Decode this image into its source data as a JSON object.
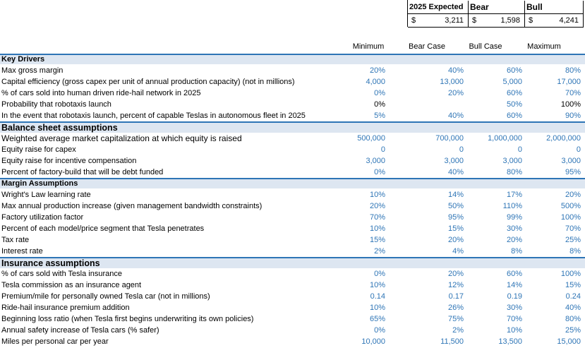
{
  "summary": {
    "headers": [
      "2025 Expected",
      "Bear",
      "Bull"
    ],
    "currency": "$",
    "values": [
      "3,211",
      "1,598",
      "4,241"
    ]
  },
  "columns": [
    "Minimum",
    "Bear Case",
    "Bull Case",
    "Maximum"
  ],
  "sections": [
    {
      "title": "Key Drivers",
      "rows": [
        {
          "label": "Max gross margin",
          "values": [
            "20%",
            "40%",
            "60%",
            "80%"
          ]
        },
        {
          "label": "Capital efficiency (gross capex per unit of annual production capacity) (not in millions)",
          "values": [
            "4,000",
            "13,000",
            "5,000",
            "17,000"
          ]
        },
        {
          "label": "% of cars sold into human driven ride-hail network in 2025",
          "values": [
            "0%",
            "20%",
            "60%",
            "70%"
          ]
        },
        {
          "label": "Probability that robotaxis launch",
          "values": [
            "0%",
            "",
            "50%",
            "100%"
          ]
        },
        {
          "label": "In the event that robotaxis launch, percent of capable Teslas in autonomous fleet in 2025",
          "values": [
            "5%",
            "40%",
            "60%",
            "90%"
          ]
        }
      ]
    },
    {
      "title": "Balance sheet assumptions",
      "rows": [
        {
          "label": "Weighted average market capitalization at which equity is raised",
          "values": [
            "500,000",
            "700,000",
            "1,000,000",
            "2,000,000"
          ]
        },
        {
          "label": "Equity raise for capex",
          "values": [
            "0",
            "0",
            "0",
            "0"
          ]
        },
        {
          "label": "Equity raise for incentive compensation",
          "values": [
            "3,000",
            "3,000",
            "3,000",
            "3,000"
          ]
        },
        {
          "label": "Percent of factory-build that will be debt funded",
          "values": [
            "0%",
            "40%",
            "80%",
            "95%"
          ]
        }
      ]
    },
    {
      "title": "Margin Assumptions",
      "rows": [
        {
          "label": "Wright's Law learning rate",
          "values": [
            "10%",
            "14%",
            "17%",
            "20%"
          ]
        },
        {
          "label": "Max annual production increase (given management bandwidth constraints)",
          "values": [
            "20%",
            "50%",
            "110%",
            "500%"
          ]
        },
        {
          "label": "Factory utilization factor",
          "values": [
            "70%",
            "95%",
            "99%",
            "100%"
          ]
        },
        {
          "label": "Percent of each model/price segment that Tesla penetrates",
          "values": [
            "10%",
            "15%",
            "30%",
            "70%"
          ]
        },
        {
          "label": "Tax rate",
          "values": [
            "15%",
            "20%",
            "20%",
            "25%"
          ]
        },
        {
          "label": "Interest rate",
          "values": [
            "2%",
            "4%",
            "8%",
            "8%"
          ]
        }
      ]
    },
    {
      "title": "Insurance assumptions",
      "rows": [
        {
          "label": "% of cars sold with Tesla insurance",
          "values": [
            "0%",
            "20%",
            "60%",
            "100%"
          ]
        },
        {
          "label": "Tesla commission as an insurance agent",
          "values": [
            "10%",
            "12%",
            "14%",
            "15%"
          ]
        },
        {
          "label": "Premium/mile for personally owned Tesla car (not in millions)",
          "values": [
            "0.14",
            "0.17",
            "0.19",
            "0.24"
          ]
        },
        {
          "label": "Ride-hail insurance premium addition",
          "values": [
            "10%",
            "26%",
            "30%",
            "40%"
          ]
        },
        {
          "label": "Beginning loss ratio (when Tesla first begins underwriting its own policies)",
          "values": [
            "65%",
            "75%",
            "70%",
            "80%"
          ]
        },
        {
          "label": "Annual safety increase of Tesla cars (% safer)",
          "values": [
            "0%",
            "2%",
            "10%",
            "25%"
          ]
        },
        {
          "label": "Miles per personal car per year",
          "values": [
            "10,000",
            "11,500",
            "13,500",
            "15,000"
          ]
        }
      ]
    }
  ],
  "colors": {
    "input_blue": "#2e75b6",
    "section_fill": "#dde6f1",
    "section_border": "#2e75b6"
  }
}
